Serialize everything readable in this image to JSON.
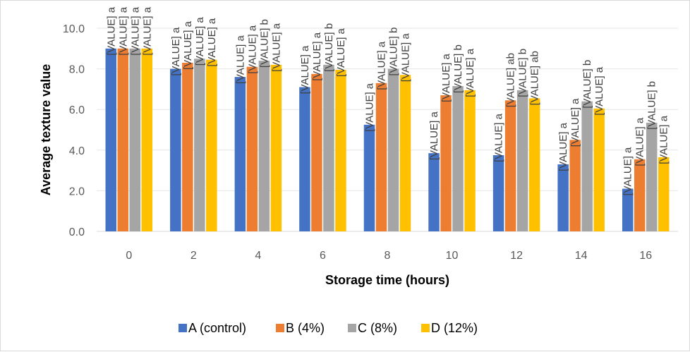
{
  "chart_data": {
    "type": "bar",
    "xlabel": "Storage time (hours)",
    "ylabel": "Average texture value",
    "categories": [
      "0",
      "2",
      "4",
      "6",
      "8",
      "10",
      "12",
      "14",
      "16"
    ],
    "ylim": [
      0,
      10
    ],
    "yticks": [
      "0.0",
      "2.0",
      "4.0",
      "6.0",
      "8.0",
      "10.0"
    ],
    "grid": true,
    "legend_position": "bottom",
    "series": [
      {
        "name": "A (control)",
        "color": "#4472C4",
        "values": [
          9.0,
          8.0,
          7.6,
          7.1,
          5.25,
          3.85,
          3.75,
          3.3,
          2.1
        ],
        "labels": [
          "[VALUE] a",
          "[VALUE] a",
          "[VALUE] a",
          "[VALUE] a",
          "[VALUE] a",
          "[VALUE] a",
          "[VALUE] a",
          "[VALUE] a",
          "[VALUE] a"
        ]
      },
      {
        "name": "B (4%)",
        "color": "#ED7D31",
        "values": [
          9.0,
          8.3,
          8.1,
          7.75,
          7.3,
          6.7,
          6.45,
          4.5,
          3.55
        ],
        "labels": [
          "[VALUE] a",
          "[VALUE] a",
          "[VALUE] a",
          "[VALUE] a",
          "[VALUE] a",
          "[VALUE] a",
          "[VALUE] ab",
          "[VALUE] a",
          "[VALUE] a"
        ]
      },
      {
        "name": "C (8%)",
        "color": "#A5A5A5",
        "values": [
          9.0,
          8.5,
          8.4,
          8.2,
          8.0,
          7.15,
          6.95,
          6.4,
          5.35
        ],
        "labels": [
          "[VALUE] a",
          "[VALUE] a",
          "[VALUE] b",
          "[VALUE] b",
          "[VALUE] b",
          "[VALUE] b",
          "[VALUE] b",
          "[VALUE] b",
          "[VALUE] b"
        ]
      },
      {
        "name": "D (12%)",
        "color": "#FFC000",
        "values": [
          9.0,
          8.45,
          8.2,
          7.95,
          7.7,
          6.95,
          6.55,
          6.05,
          3.65
        ],
        "labels": [
          "[VALUE] a",
          "[VALUE] a",
          "[VALUE] a",
          "[VALUE] a",
          "[VALUE] a",
          "[VALUE] a",
          "[VALUE] ab",
          "[VALUE] a",
          "[VALUE] a"
        ]
      }
    ]
  }
}
